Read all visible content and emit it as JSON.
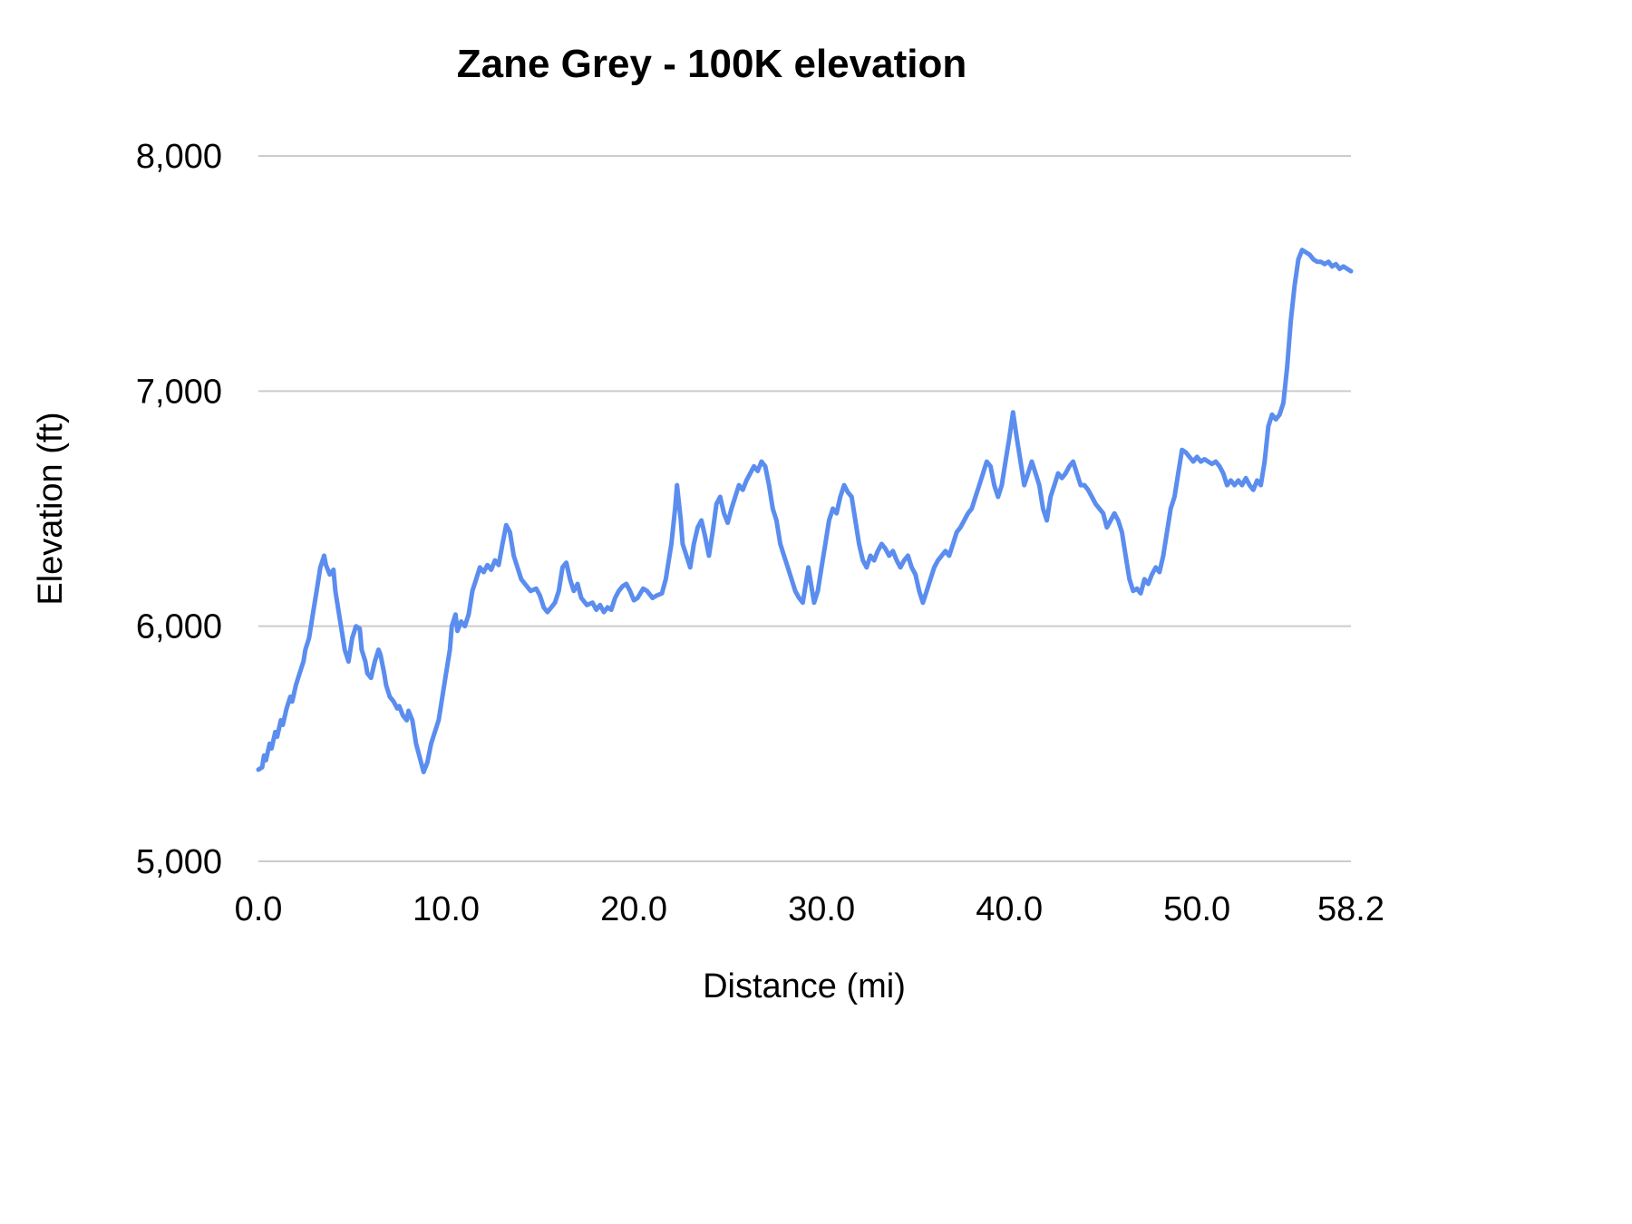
{
  "chart_data": {
    "type": "line",
    "title": "Zane Grey - 100K elevation",
    "xlabel": "Distance (mi)",
    "ylabel": "Elevation (ft)",
    "xlim": [
      0,
      58.2
    ],
    "ylim": [
      5000,
      8000
    ],
    "grid": "horizontal",
    "legend": "none",
    "line_color": "#5b8def",
    "grid_color": "#cccccc",
    "text_color": "#000000",
    "x_ticks": [
      {
        "value": 0,
        "label": "0.0"
      },
      {
        "value": 10,
        "label": "10.0"
      },
      {
        "value": 20,
        "label": "20.0"
      },
      {
        "value": 30,
        "label": "30.0"
      },
      {
        "value": 40,
        "label": "40.0"
      },
      {
        "value": 50,
        "label": "50.0"
      },
      {
        "value": 58.2,
        "label": "58.2"
      }
    ],
    "y_ticks": [
      {
        "value": 5000,
        "label": "5,000"
      },
      {
        "value": 6000,
        "label": "6,000"
      },
      {
        "value": 7000,
        "label": "7,000"
      },
      {
        "value": 8000,
        "label": "8,000"
      }
    ],
    "series": [
      {
        "name": "elevation",
        "points": [
          [
            0.0,
            5390
          ],
          [
            0.2,
            5400
          ],
          [
            0.3,
            5450
          ],
          [
            0.4,
            5430
          ],
          [
            0.6,
            5500
          ],
          [
            0.7,
            5480
          ],
          [
            0.9,
            5550
          ],
          [
            1.0,
            5530
          ],
          [
            1.2,
            5600
          ],
          [
            1.3,
            5580
          ],
          [
            1.5,
            5650
          ],
          [
            1.7,
            5700
          ],
          [
            1.8,
            5680
          ],
          [
            2.0,
            5750
          ],
          [
            2.2,
            5800
          ],
          [
            2.4,
            5850
          ],
          [
            2.5,
            5900
          ],
          [
            2.7,
            5950
          ],
          [
            2.9,
            6050
          ],
          [
            3.1,
            6150
          ],
          [
            3.3,
            6250
          ],
          [
            3.5,
            6300
          ],
          [
            3.6,
            6260
          ],
          [
            3.8,
            6220
          ],
          [
            4.0,
            6240
          ],
          [
            4.1,
            6150
          ],
          [
            4.3,
            6050
          ],
          [
            4.5,
            5950
          ],
          [
            4.6,
            5900
          ],
          [
            4.8,
            5850
          ],
          [
            5.0,
            5950
          ],
          [
            5.2,
            6000
          ],
          [
            5.4,
            5990
          ],
          [
            5.5,
            5900
          ],
          [
            5.7,
            5850
          ],
          [
            5.8,
            5800
          ],
          [
            6.0,
            5780
          ],
          [
            6.2,
            5850
          ],
          [
            6.4,
            5900
          ],
          [
            6.5,
            5880
          ],
          [
            6.7,
            5800
          ],
          [
            6.8,
            5750
          ],
          [
            7.0,
            5700
          ],
          [
            7.2,
            5680
          ],
          [
            7.4,
            5650
          ],
          [
            7.5,
            5660
          ],
          [
            7.7,
            5620
          ],
          [
            7.9,
            5600
          ],
          [
            8.0,
            5640
          ],
          [
            8.2,
            5600
          ],
          [
            8.4,
            5500
          ],
          [
            8.6,
            5440
          ],
          [
            8.8,
            5380
          ],
          [
            9.0,
            5420
          ],
          [
            9.2,
            5500
          ],
          [
            9.4,
            5550
          ],
          [
            9.6,
            5600
          ],
          [
            9.8,
            5700
          ],
          [
            10.0,
            5800
          ],
          [
            10.2,
            5900
          ],
          [
            10.3,
            6000
          ],
          [
            10.5,
            6050
          ],
          [
            10.6,
            5980
          ],
          [
            10.8,
            6020
          ],
          [
            11.0,
            6000
          ],
          [
            11.2,
            6050
          ],
          [
            11.4,
            6150
          ],
          [
            11.6,
            6200
          ],
          [
            11.8,
            6250
          ],
          [
            12.0,
            6230
          ],
          [
            12.2,
            6260
          ],
          [
            12.4,
            6240
          ],
          [
            12.6,
            6280
          ],
          [
            12.8,
            6260
          ],
          [
            13.0,
            6350
          ],
          [
            13.2,
            6430
          ],
          [
            13.4,
            6400
          ],
          [
            13.6,
            6300
          ],
          [
            13.8,
            6250
          ],
          [
            14.0,
            6200
          ],
          [
            14.2,
            6180
          ],
          [
            14.5,
            6150
          ],
          [
            14.8,
            6160
          ],
          [
            15.0,
            6130
          ],
          [
            15.2,
            6080
          ],
          [
            15.4,
            6060
          ],
          [
            15.6,
            6080
          ],
          [
            15.8,
            6100
          ],
          [
            16.0,
            6150
          ],
          [
            16.2,
            6250
          ],
          [
            16.4,
            6270
          ],
          [
            16.6,
            6200
          ],
          [
            16.8,
            6150
          ],
          [
            17.0,
            6180
          ],
          [
            17.2,
            6120
          ],
          [
            17.5,
            6090
          ],
          [
            17.8,
            6100
          ],
          [
            18.0,
            6070
          ],
          [
            18.2,
            6090
          ],
          [
            18.4,
            6060
          ],
          [
            18.6,
            6080
          ],
          [
            18.8,
            6070
          ],
          [
            19.0,
            6120
          ],
          [
            19.2,
            6150
          ],
          [
            19.4,
            6170
          ],
          [
            19.6,
            6180
          ],
          [
            19.8,
            6150
          ],
          [
            20.0,
            6110
          ],
          [
            20.2,
            6120
          ],
          [
            20.5,
            6160
          ],
          [
            20.7,
            6150
          ],
          [
            21.0,
            6120
          ],
          [
            21.2,
            6130
          ],
          [
            21.5,
            6140
          ],
          [
            21.7,
            6200
          ],
          [
            22.0,
            6350
          ],
          [
            22.2,
            6500
          ],
          [
            22.3,
            6600
          ],
          [
            22.5,
            6450
          ],
          [
            22.6,
            6350
          ],
          [
            22.8,
            6300
          ],
          [
            23.0,
            6250
          ],
          [
            23.2,
            6350
          ],
          [
            23.4,
            6420
          ],
          [
            23.6,
            6450
          ],
          [
            23.8,
            6380
          ],
          [
            24.0,
            6300
          ],
          [
            24.2,
            6400
          ],
          [
            24.4,
            6520
          ],
          [
            24.6,
            6550
          ],
          [
            24.8,
            6480
          ],
          [
            25.0,
            6440
          ],
          [
            25.2,
            6500
          ],
          [
            25.4,
            6550
          ],
          [
            25.6,
            6600
          ],
          [
            25.8,
            6580
          ],
          [
            26.0,
            6620
          ],
          [
            26.2,
            6650
          ],
          [
            26.4,
            6680
          ],
          [
            26.6,
            6660
          ],
          [
            26.8,
            6700
          ],
          [
            27.0,
            6680
          ],
          [
            27.2,
            6600
          ],
          [
            27.4,
            6500
          ],
          [
            27.6,
            6450
          ],
          [
            27.8,
            6350
          ],
          [
            28.0,
            6300
          ],
          [
            28.2,
            6250
          ],
          [
            28.4,
            6200
          ],
          [
            28.6,
            6150
          ],
          [
            28.8,
            6120
          ],
          [
            29.0,
            6100
          ],
          [
            29.2,
            6200
          ],
          [
            29.3,
            6250
          ],
          [
            29.5,
            6150
          ],
          [
            29.6,
            6100
          ],
          [
            29.8,
            6150
          ],
          [
            30.0,
            6250
          ],
          [
            30.2,
            6350
          ],
          [
            30.4,
            6450
          ],
          [
            30.6,
            6500
          ],
          [
            30.8,
            6480
          ],
          [
            31.0,
            6550
          ],
          [
            31.2,
            6600
          ],
          [
            31.4,
            6570
          ],
          [
            31.6,
            6550
          ],
          [
            31.8,
            6450
          ],
          [
            32.0,
            6350
          ],
          [
            32.2,
            6280
          ],
          [
            32.4,
            6250
          ],
          [
            32.6,
            6300
          ],
          [
            32.8,
            6280
          ],
          [
            33.0,
            6320
          ],
          [
            33.2,
            6350
          ],
          [
            33.4,
            6330
          ],
          [
            33.6,
            6300
          ],
          [
            33.8,
            6320
          ],
          [
            34.0,
            6280
          ],
          [
            34.2,
            6250
          ],
          [
            34.4,
            6280
          ],
          [
            34.6,
            6300
          ],
          [
            34.8,
            6250
          ],
          [
            35.0,
            6220
          ],
          [
            35.2,
            6150
          ],
          [
            35.4,
            6100
          ],
          [
            35.6,
            6150
          ],
          [
            35.8,
            6200
          ],
          [
            36.0,
            6250
          ],
          [
            36.2,
            6280
          ],
          [
            36.4,
            6300
          ],
          [
            36.6,
            6320
          ],
          [
            36.8,
            6300
          ],
          [
            37.0,
            6350
          ],
          [
            37.2,
            6400
          ],
          [
            37.4,
            6420
          ],
          [
            37.6,
            6450
          ],
          [
            37.8,
            6480
          ],
          [
            38.0,
            6500
          ],
          [
            38.2,
            6550
          ],
          [
            38.4,
            6600
          ],
          [
            38.6,
            6650
          ],
          [
            38.8,
            6700
          ],
          [
            39.0,
            6680
          ],
          [
            39.2,
            6600
          ],
          [
            39.4,
            6550
          ],
          [
            39.6,
            6600
          ],
          [
            39.8,
            6700
          ],
          [
            40.0,
            6800
          ],
          [
            40.2,
            6910
          ],
          [
            40.4,
            6800
          ],
          [
            40.6,
            6700
          ],
          [
            40.8,
            6600
          ],
          [
            41.0,
            6650
          ],
          [
            41.2,
            6700
          ],
          [
            41.4,
            6650
          ],
          [
            41.6,
            6600
          ],
          [
            41.8,
            6500
          ],
          [
            42.0,
            6450
          ],
          [
            42.2,
            6550
          ],
          [
            42.4,
            6600
          ],
          [
            42.6,
            6650
          ],
          [
            42.8,
            6630
          ],
          [
            43.0,
            6650
          ],
          [
            43.2,
            6680
          ],
          [
            43.4,
            6700
          ],
          [
            43.6,
            6650
          ],
          [
            43.8,
            6600
          ],
          [
            44.0,
            6600
          ],
          [
            44.2,
            6580
          ],
          [
            44.4,
            6550
          ],
          [
            44.6,
            6520
          ],
          [
            44.8,
            6500
          ],
          [
            45.0,
            6480
          ],
          [
            45.2,
            6420
          ],
          [
            45.4,
            6450
          ],
          [
            45.6,
            6480
          ],
          [
            45.8,
            6450
          ],
          [
            46.0,
            6400
          ],
          [
            46.2,
            6300
          ],
          [
            46.4,
            6200
          ],
          [
            46.6,
            6150
          ],
          [
            46.8,
            6160
          ],
          [
            47.0,
            6140
          ],
          [
            47.2,
            6200
          ],
          [
            47.4,
            6180
          ],
          [
            47.6,
            6220
          ],
          [
            47.8,
            6250
          ],
          [
            48.0,
            6230
          ],
          [
            48.2,
            6300
          ],
          [
            48.4,
            6400
          ],
          [
            48.6,
            6500
          ],
          [
            48.8,
            6550
          ],
          [
            49.0,
            6650
          ],
          [
            49.2,
            6750
          ],
          [
            49.4,
            6740
          ],
          [
            49.6,
            6720
          ],
          [
            49.8,
            6700
          ],
          [
            50.0,
            6720
          ],
          [
            50.2,
            6700
          ],
          [
            50.4,
            6710
          ],
          [
            50.6,
            6700
          ],
          [
            50.8,
            6690
          ],
          [
            51.0,
            6700
          ],
          [
            51.2,
            6680
          ],
          [
            51.4,
            6650
          ],
          [
            51.6,
            6600
          ],
          [
            51.8,
            6620
          ],
          [
            52.0,
            6600
          ],
          [
            52.2,
            6620
          ],
          [
            52.4,
            6600
          ],
          [
            52.6,
            6630
          ],
          [
            52.8,
            6600
          ],
          [
            53.0,
            6580
          ],
          [
            53.2,
            6620
          ],
          [
            53.4,
            6600
          ],
          [
            53.6,
            6700
          ],
          [
            53.8,
            6850
          ],
          [
            54.0,
            6900
          ],
          [
            54.2,
            6880
          ],
          [
            54.4,
            6900
          ],
          [
            54.6,
            6950
          ],
          [
            54.8,
            7100
          ],
          [
            55.0,
            7300
          ],
          [
            55.2,
            7450
          ],
          [
            55.4,
            7560
          ],
          [
            55.6,
            7600
          ],
          [
            55.8,
            7590
          ],
          [
            56.0,
            7580
          ],
          [
            56.2,
            7560
          ],
          [
            56.4,
            7550
          ],
          [
            56.6,
            7550
          ],
          [
            56.8,
            7540
          ],
          [
            57.0,
            7550
          ],
          [
            57.2,
            7530
          ],
          [
            57.4,
            7540
          ],
          [
            57.6,
            7520
          ],
          [
            57.8,
            7530
          ],
          [
            58.0,
            7520
          ],
          [
            58.2,
            7510
          ]
        ]
      }
    ]
  }
}
